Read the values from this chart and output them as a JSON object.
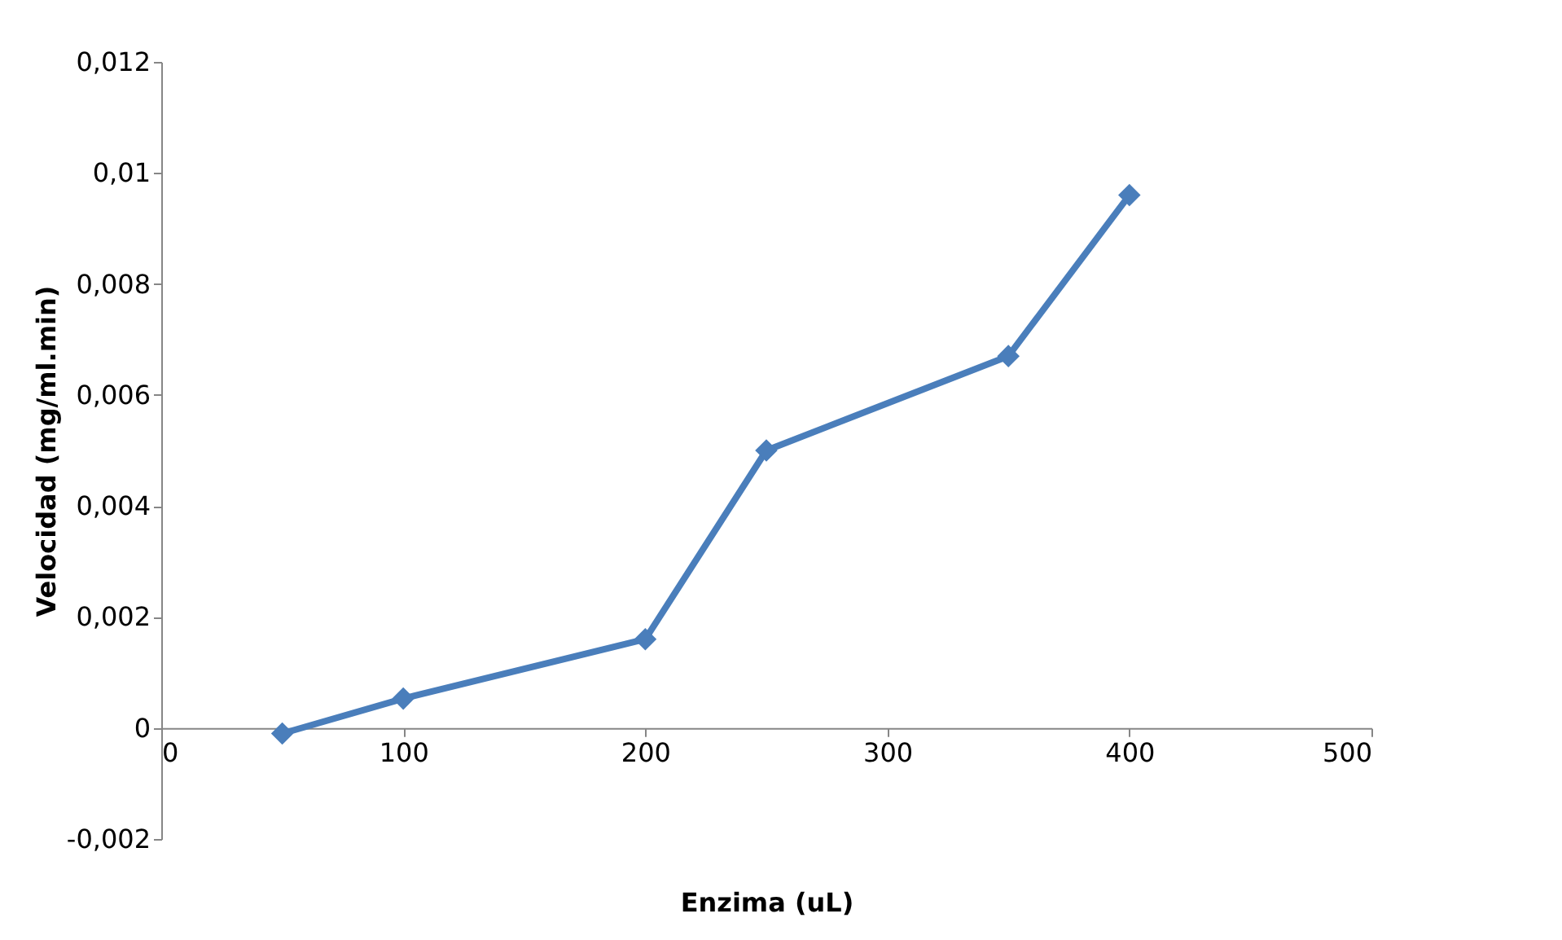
{
  "chart_data": {
    "type": "line",
    "xlabel": "Enzima (uL)",
    "ylabel": "Velocidad (mg/ml.min)",
    "x": [
      50,
      100,
      200,
      250,
      350,
      400
    ],
    "series": [
      {
        "color": "#4a7ebb",
        "values": [
          -0.0001,
          0.00053,
          0.0016,
          0.005,
          0.0067,
          0.0096
        ]
      }
    ],
    "xlim": [
      0,
      500
    ],
    "xticks": [
      0,
      100,
      200,
      300,
      400,
      500
    ],
    "ylim": [
      -0.002,
      0.012
    ],
    "yticks": [
      {
        "value": -0.002,
        "label": "-0,002"
      },
      {
        "value": 0,
        "label": "0"
      },
      {
        "value": 0.002,
        "label": "0,002"
      },
      {
        "value": 0.004,
        "label": "0,004"
      },
      {
        "value": 0.006,
        "label": "0,006"
      },
      {
        "value": 0.008,
        "label": "0,008"
      },
      {
        "value": 0.01,
        "label": "0,01"
      },
      {
        "value": 0.012,
        "label": "0,012"
      }
    ],
    "grid": false,
    "marker": "diamond",
    "line_style": "solid"
  }
}
